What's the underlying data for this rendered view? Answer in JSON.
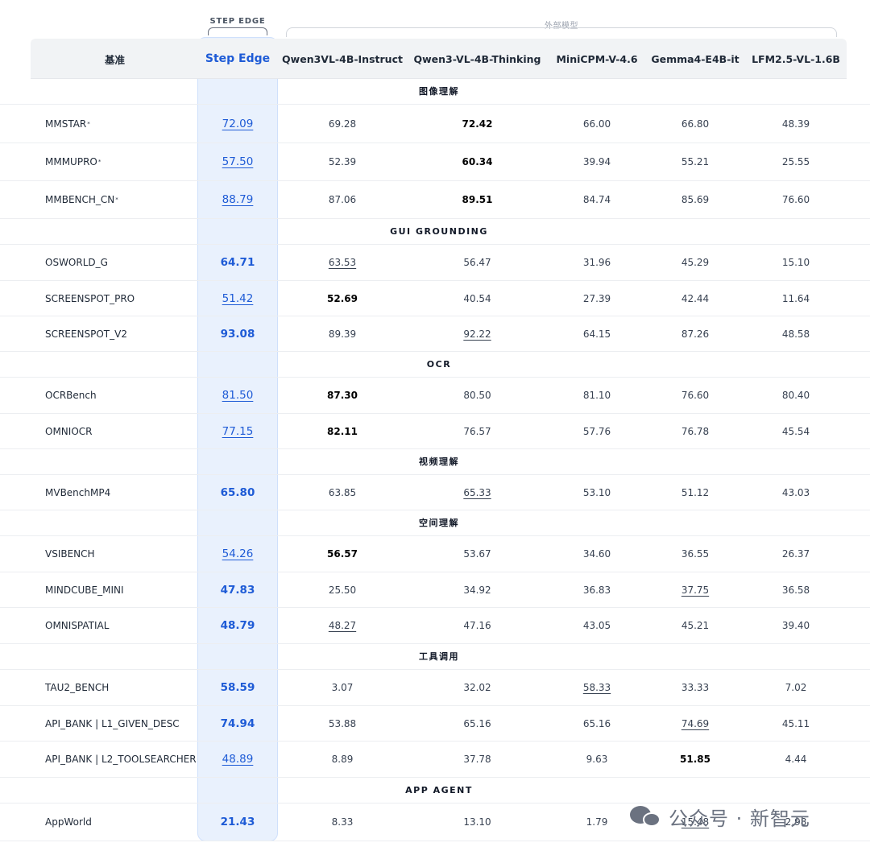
{
  "labels": {
    "step_tag": "STEP EDGE",
    "external_tag": "外部模型"
  },
  "columns": [
    "基准",
    "Step Edge",
    "Qwen3VL-4B-Instruct",
    "Qwen3-VL-4B-Thinking",
    "MiniCPM-V-4.6",
    "Gemma4-E4B-it",
    "LFM2.5-VL-1.6B"
  ],
  "sections": [
    {
      "title": "图像理解",
      "rows": [
        {
          "name": "MMSTAR",
          "sup": "*",
          "cells": [
            {
              "v": "72.09",
              "b": false,
              "u": true
            },
            {
              "v": "69.28",
              "b": false,
              "u": false
            },
            {
              "v": "72.42",
              "b": true,
              "u": false
            },
            {
              "v": "66.00",
              "b": false,
              "u": false
            },
            {
              "v": "66.80",
              "b": false,
              "u": false
            },
            {
              "v": "48.39",
              "b": false,
              "u": false
            }
          ]
        },
        {
          "name": "MMMUPRO",
          "sup": "*",
          "cells": [
            {
              "v": "57.50",
              "b": false,
              "u": true
            },
            {
              "v": "52.39",
              "b": false,
              "u": false
            },
            {
              "v": "60.34",
              "b": true,
              "u": false
            },
            {
              "v": "39.94",
              "b": false,
              "u": false
            },
            {
              "v": "55.21",
              "b": false,
              "u": false
            },
            {
              "v": "25.55",
              "b": false,
              "u": false
            }
          ]
        },
        {
          "name": "MMBENCH_CN",
          "sup": "*",
          "cells": [
            {
              "v": "88.79",
              "b": false,
              "u": true
            },
            {
              "v": "87.06",
              "b": false,
              "u": false
            },
            {
              "v": "89.51",
              "b": true,
              "u": false
            },
            {
              "v": "84.74",
              "b": false,
              "u": false
            },
            {
              "v": "85.69",
              "b": false,
              "u": false
            },
            {
              "v": "76.60",
              "b": false,
              "u": false
            }
          ]
        }
      ]
    },
    {
      "title": "GUI GROUNDING",
      "rows": [
        {
          "name": "OSWORLD_G",
          "sup": "",
          "cells": [
            {
              "v": "64.71",
              "b": true,
              "u": false
            },
            {
              "v": "63.53",
              "b": false,
              "u": true
            },
            {
              "v": "56.47",
              "b": false,
              "u": false
            },
            {
              "v": "31.96",
              "b": false,
              "u": false
            },
            {
              "v": "45.29",
              "b": false,
              "u": false
            },
            {
              "v": "15.10",
              "b": false,
              "u": false
            }
          ]
        },
        {
          "name": "SCREENSPOT_PRO",
          "sup": "",
          "cells": [
            {
              "v": "51.42",
              "b": false,
              "u": true
            },
            {
              "v": "52.69",
              "b": true,
              "u": false
            },
            {
              "v": "40.54",
              "b": false,
              "u": false
            },
            {
              "v": "27.39",
              "b": false,
              "u": false
            },
            {
              "v": "42.44",
              "b": false,
              "u": false
            },
            {
              "v": "11.64",
              "b": false,
              "u": false
            }
          ]
        },
        {
          "name": "SCREENSPOT_V2",
          "sup": "",
          "cells": [
            {
              "v": "93.08",
              "b": true,
              "u": false
            },
            {
              "v": "89.39",
              "b": false,
              "u": false
            },
            {
              "v": "92.22",
              "b": false,
              "u": true
            },
            {
              "v": "64.15",
              "b": false,
              "u": false
            },
            {
              "v": "87.26",
              "b": false,
              "u": false
            },
            {
              "v": "48.58",
              "b": false,
              "u": false
            }
          ]
        }
      ]
    },
    {
      "title": "OCR",
      "rows": [
        {
          "name": "OCRBench",
          "sup": "",
          "cells": [
            {
              "v": "81.50",
              "b": false,
              "u": true
            },
            {
              "v": "87.30",
              "b": true,
              "u": false
            },
            {
              "v": "80.50",
              "b": false,
              "u": false
            },
            {
              "v": "81.10",
              "b": false,
              "u": false
            },
            {
              "v": "76.60",
              "b": false,
              "u": false
            },
            {
              "v": "80.40",
              "b": false,
              "u": false
            }
          ]
        },
        {
          "name": "OMNIOCR",
          "sup": "",
          "cells": [
            {
              "v": "77.15",
              "b": false,
              "u": true
            },
            {
              "v": "82.11",
              "b": true,
              "u": false
            },
            {
              "v": "76.57",
              "b": false,
              "u": false
            },
            {
              "v": "57.76",
              "b": false,
              "u": false
            },
            {
              "v": "76.78",
              "b": false,
              "u": false
            },
            {
              "v": "45.54",
              "b": false,
              "u": false
            }
          ]
        }
      ]
    },
    {
      "title": "视频理解",
      "rows": [
        {
          "name": "MVBenchMP4",
          "sup": "",
          "cells": [
            {
              "v": "65.80",
              "b": true,
              "u": false
            },
            {
              "v": "63.85",
              "b": false,
              "u": false
            },
            {
              "v": "65.33",
              "b": false,
              "u": true
            },
            {
              "v": "53.10",
              "b": false,
              "u": false
            },
            {
              "v": "51.12",
              "b": false,
              "u": false
            },
            {
              "v": "43.03",
              "b": false,
              "u": false
            }
          ]
        }
      ]
    },
    {
      "title": "空间理解",
      "rows": [
        {
          "name": "VSIBENCH",
          "sup": "",
          "cells": [
            {
              "v": "54.26",
              "b": false,
              "u": true
            },
            {
              "v": "56.57",
              "b": true,
              "u": false
            },
            {
              "v": "53.67",
              "b": false,
              "u": false
            },
            {
              "v": "34.60",
              "b": false,
              "u": false
            },
            {
              "v": "36.55",
              "b": false,
              "u": false
            },
            {
              "v": "26.37",
              "b": false,
              "u": false
            }
          ]
        },
        {
          "name": "MINDCUBE_MINI",
          "sup": "",
          "cells": [
            {
              "v": "47.83",
              "b": true,
              "u": false
            },
            {
              "v": "25.50",
              "b": false,
              "u": false
            },
            {
              "v": "34.92",
              "b": false,
              "u": false
            },
            {
              "v": "36.83",
              "b": false,
              "u": false
            },
            {
              "v": "37.75",
              "b": false,
              "u": true
            },
            {
              "v": "36.58",
              "b": false,
              "u": false
            }
          ]
        },
        {
          "name": "OMNISPATIAL",
          "sup": "",
          "cells": [
            {
              "v": "48.79",
              "b": true,
              "u": false
            },
            {
              "v": "48.27",
              "b": false,
              "u": true
            },
            {
              "v": "47.16",
              "b": false,
              "u": false
            },
            {
              "v": "43.05",
              "b": false,
              "u": false
            },
            {
              "v": "45.21",
              "b": false,
              "u": false
            },
            {
              "v": "39.40",
              "b": false,
              "u": false
            }
          ]
        }
      ]
    },
    {
      "title": "工具调用",
      "rows": [
        {
          "name": "TAU2_BENCH",
          "sup": "",
          "cells": [
            {
              "v": "58.59",
              "b": true,
              "u": false
            },
            {
              "v": "3.07",
              "b": false,
              "u": false
            },
            {
              "v": "32.02",
              "b": false,
              "u": false
            },
            {
              "v": "58.33",
              "b": false,
              "u": true
            },
            {
              "v": "33.33",
              "b": false,
              "u": false
            },
            {
              "v": "7.02",
              "b": false,
              "u": false
            }
          ]
        },
        {
          "name": "API_BANK | L1_GIVEN_DESC",
          "sup": "",
          "cells": [
            {
              "v": "74.94",
              "b": true,
              "u": false
            },
            {
              "v": "53.88",
              "b": false,
              "u": false
            },
            {
              "v": "65.16",
              "b": false,
              "u": false
            },
            {
              "v": "65.16",
              "b": false,
              "u": false
            },
            {
              "v": "74.69",
              "b": false,
              "u": true
            },
            {
              "v": "45.11",
              "b": false,
              "u": false
            }
          ]
        },
        {
          "name": "API_BANK | L2_TOOLSEARCHER",
          "sup": "",
          "cells": [
            {
              "v": "48.89",
              "b": false,
              "u": true
            },
            {
              "v": "8.89",
              "b": false,
              "u": false
            },
            {
              "v": "37.78",
              "b": false,
              "u": false
            },
            {
              "v": "9.63",
              "b": false,
              "u": false
            },
            {
              "v": "51.85",
              "b": true,
              "u": false
            },
            {
              "v": "4.44",
              "b": false,
              "u": false
            }
          ]
        }
      ]
    },
    {
      "title": "APP AGENT",
      "rows": [
        {
          "name": "AppWorld",
          "sup": "",
          "cells": [
            {
              "v": "21.43",
              "b": true,
              "u": false
            },
            {
              "v": "8.33",
              "b": false,
              "u": false
            },
            {
              "v": "13.10",
              "b": false,
              "u": false
            },
            {
              "v": "1.79",
              "b": false,
              "u": false
            },
            {
              "v": "15.48",
              "b": false,
              "u": true
            },
            {
              "v": "2.98",
              "b": false,
              "u": false
            }
          ]
        }
      ]
    }
  ],
  "watermark": "公众号 · 新智元",
  "colors": {
    "accent": "#1e5bd6",
    "step_column_bg": "#e9f1fd",
    "header_bg": "#f1f3f5"
  }
}
